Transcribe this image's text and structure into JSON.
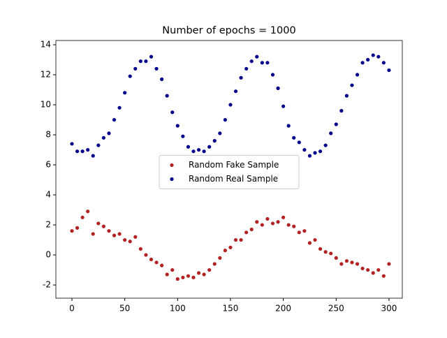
{
  "chart_data": {
    "type": "scatter",
    "title": "Number of epochs = 1000",
    "x": [
      0,
      5,
      10,
      15,
      20,
      25,
      30,
      35,
      40,
      45,
      50,
      55,
      60,
      65,
      70,
      75,
      80,
      85,
      90,
      95,
      100,
      105,
      110,
      115,
      120,
      125,
      130,
      135,
      140,
      145,
      150,
      155,
      160,
      165,
      170,
      175,
      180,
      185,
      190,
      195,
      200,
      205,
      210,
      215,
      220,
      225,
      230,
      235,
      240,
      245,
      250,
      255,
      260,
      265,
      270,
      275,
      280,
      285,
      290,
      295,
      300
    ],
    "series": [
      {
        "name": "Random Fake Sample",
        "color": "#b22222",
        "values": [
          1.6,
          1.8,
          2.5,
          2.9,
          1.4,
          2.1,
          1.9,
          1.6,
          1.3,
          1.4,
          1.0,
          0.9,
          1.2,
          0.4,
          0.0,
          -0.3,
          -0.5,
          -0.7,
          -1.3,
          -1.0,
          -1.6,
          -1.5,
          -1.4,
          -1.5,
          -1.2,
          -1.3,
          -1.0,
          -0.6,
          -0.2,
          0.3,
          0.5,
          1.0,
          1.0,
          1.5,
          1.7,
          2.2,
          2.0,
          2.4,
          2.1,
          2.2,
          2.5,
          2.0,
          1.9,
          1.5,
          1.6,
          0.8,
          1.0,
          0.4,
          0.2,
          0.1,
          -0.2,
          -0.6,
          -0.4,
          -0.5,
          -0.6,
          -0.9,
          -1.0,
          -1.2,
          -1.0,
          -1.4,
          -0.6
        ]
      },
      {
        "name": "Random Real Sample",
        "color": "#00008b",
        "values": [
          7.4,
          6.9,
          6.9,
          7.0,
          6.6,
          7.3,
          7.8,
          8.1,
          9.0,
          9.8,
          10.8,
          11.9,
          12.4,
          12.9,
          12.9,
          13.2,
          12.4,
          11.7,
          10.6,
          9.5,
          8.6,
          7.9,
          7.2,
          6.9,
          7.0,
          6.9,
          7.2,
          7.6,
          8.1,
          9.0,
          10.0,
          10.9,
          11.8,
          12.4,
          12.9,
          13.2,
          12.8,
          12.8,
          12.0,
          11.1,
          9.9,
          8.6,
          7.8,
          7.5,
          7.0,
          6.6,
          6.8,
          6.9,
          7.3,
          8.1,
          8.7,
          9.6,
          10.6,
          11.3,
          12.0,
          12.8,
          13.0,
          13.3,
          13.2,
          12.8,
          12.3
        ]
      }
    ],
    "xlim": [
      -15.2,
      312.6
    ],
    "ylim": [
      -2.88,
      14.28
    ],
    "xticks": [
      0,
      50,
      100,
      150,
      200,
      250,
      300
    ],
    "yticks": [
      -2,
      0,
      2,
      4,
      6,
      8,
      10,
      12,
      14
    ],
    "legend": "center"
  }
}
